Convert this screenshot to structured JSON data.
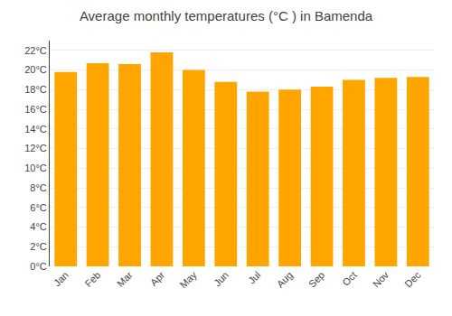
{
  "chart_data": {
    "type": "bar",
    "title": "Average monthly temperatures (°C ) in Bamenda",
    "categories": [
      "Jan",
      "Feb",
      "Mar",
      "Apr",
      "May",
      "Jun",
      "Jul",
      "Aug",
      "Sep",
      "Oct",
      "Nov",
      "Dec"
    ],
    "values": [
      19.8,
      20.7,
      20.6,
      21.8,
      20.0,
      18.8,
      17.8,
      18.0,
      18.3,
      19.0,
      19.2,
      19.3
    ],
    "color": "#FFA500",
    "ylim": [
      0,
      23
    ],
    "yticks": [
      {
        "value": 0,
        "label": "0°C"
      },
      {
        "value": 2,
        "label": "2°C"
      },
      {
        "value": 4,
        "label": "4°C"
      },
      {
        "value": 6,
        "label": "6°C"
      },
      {
        "value": 8,
        "label": "8°C"
      },
      {
        "value": 10,
        "label": "10°C"
      },
      {
        "value": 12,
        "label": "12°C"
      },
      {
        "value": 14,
        "label": "14°C"
      },
      {
        "value": 16,
        "label": "16°C"
      },
      {
        "value": 18,
        "label": "18°C"
      },
      {
        "value": 20,
        "label": "20°C"
      },
      {
        "value": 22,
        "label": "22°C"
      }
    ],
    "grid": true
  }
}
